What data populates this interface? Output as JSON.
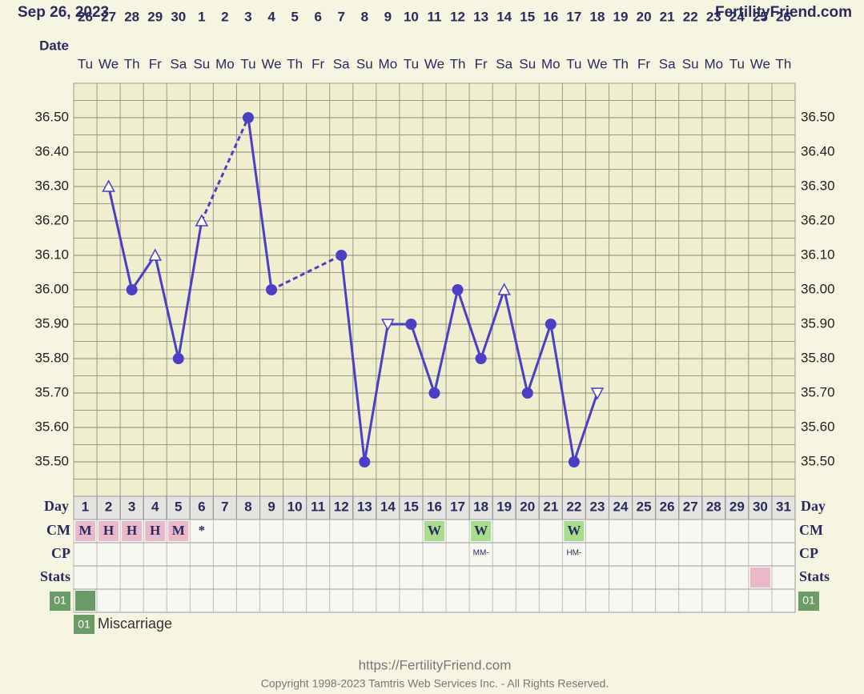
{
  "header": {
    "date": "Sep 26, 2023",
    "site": "FertilityFriend.com"
  },
  "chart_data": {
    "type": "line",
    "date_label": "Date",
    "dates": [
      "26",
      "27",
      "28",
      "29",
      "30",
      "1",
      "2",
      "3",
      "4",
      "5",
      "6",
      "7",
      "8",
      "9",
      "10",
      "11",
      "12",
      "13",
      "14",
      "15",
      "16",
      "17",
      "18",
      "19",
      "20",
      "21",
      "22",
      "23",
      "24",
      "25",
      "26"
    ],
    "weekdays": [
      "Tu",
      "We",
      "Th",
      "Fr",
      "Sa",
      "Su",
      "Mo",
      "Tu",
      "We",
      "Th",
      "Fr",
      "Sa",
      "Su",
      "Mo",
      "Tu",
      "We",
      "Th",
      "Fr",
      "Sa",
      "Su",
      "Mo",
      "Tu",
      "We",
      "Th",
      "Fr",
      "Sa",
      "Su",
      "Mo",
      "Tu",
      "We",
      "Th"
    ],
    "day_label": "Day",
    "categories": [
      "1",
      "2",
      "3",
      "4",
      "5",
      "6",
      "7",
      "8",
      "9",
      "10",
      "11",
      "12",
      "13",
      "14",
      "15",
      "16",
      "17",
      "18",
      "19",
      "20",
      "21",
      "22",
      "23",
      "24",
      "25",
      "26",
      "27",
      "28",
      "29",
      "30",
      "31"
    ],
    "values": [
      null,
      36.3,
      36.0,
      36.1,
      35.8,
      36.2,
      null,
      36.5,
      36.0,
      null,
      null,
      36.1,
      35.5,
      35.9,
      35.9,
      35.7,
      36.0,
      35.8,
      36.0,
      35.7,
      35.9,
      35.5,
      35.7,
      null,
      null,
      null,
      null,
      null,
      null,
      null,
      null
    ],
    "markers": [
      null,
      "up",
      "dot",
      "up",
      "dot",
      "up",
      null,
      "dot",
      "dot",
      null,
      null,
      "dot",
      "dot",
      "down",
      "dot",
      "dot",
      "dot",
      "dot",
      "up",
      "dot",
      "dot",
      "dot",
      "down",
      null,
      null,
      null,
      null,
      null,
      null,
      null,
      null
    ],
    "color": "#4b3fc6",
    "ylim": [
      35.4,
      36.6
    ],
    "yticks": [
      {
        "value": 35.5,
        "label": "35.50"
      },
      {
        "value": 35.6,
        "label": "35.60"
      },
      {
        "value": 35.7,
        "label": "35.70"
      },
      {
        "value": 35.8,
        "label": "35.80"
      },
      {
        "value": 35.9,
        "label": "35.90"
      },
      {
        "value": 36.0,
        "label": "36.00"
      },
      {
        "value": 36.1,
        "label": "36.10"
      },
      {
        "value": 36.2,
        "label": "36.20"
      },
      {
        "value": 36.3,
        "label": "36.30"
      },
      {
        "value": 36.4,
        "label": "36.40"
      },
      {
        "value": 36.5,
        "label": "36.50"
      }
    ],
    "grid": true,
    "rows": [
      {
        "label": "CM",
        "cells": [
          "M",
          "H",
          "H",
          "H",
          "M",
          "*",
          null,
          null,
          null,
          null,
          null,
          null,
          null,
          null,
          null,
          "W",
          null,
          "W",
          null,
          null,
          null,
          "W",
          null,
          null,
          null,
          null,
          null,
          null,
          null,
          null,
          null
        ],
        "colors": [
          "#e9b8cb",
          "#e9b8cb",
          "#e9b8cb",
          "#e9b8cb",
          "#e9b8cb",
          null,
          null,
          null,
          null,
          null,
          null,
          null,
          null,
          null,
          null,
          "#a9dc8e",
          null,
          "#a9dc8e",
          null,
          null,
          null,
          "#a9dc8e",
          null,
          null,
          null,
          null,
          null,
          null,
          null,
          null,
          null
        ]
      },
      {
        "label": "CP",
        "cells": [
          null,
          null,
          null,
          null,
          null,
          null,
          null,
          null,
          null,
          null,
          null,
          null,
          null,
          null,
          null,
          null,
          null,
          "MM-",
          null,
          null,
          null,
          "HM-",
          null,
          null,
          null,
          null,
          null,
          null,
          null,
          null,
          null
        ]
      },
      {
        "label": "Stats",
        "colors": [
          null,
          null,
          null,
          null,
          null,
          null,
          null,
          null,
          null,
          null,
          null,
          null,
          null,
          null,
          null,
          null,
          null,
          null,
          null,
          null,
          null,
          null,
          null,
          null,
          null,
          null,
          null,
          null,
          null,
          "#eab8c8",
          null
        ]
      },
      {
        "label": "01",
        "label_color": "#6b9b66",
        "colors": [
          "#6b9b66",
          null,
          null,
          null,
          null,
          null,
          null,
          null,
          null,
          null,
          null,
          null,
          null,
          null,
          null,
          null,
          null,
          null,
          null,
          null,
          null,
          null,
          null,
          null,
          null,
          null,
          null,
          null,
          null,
          null,
          null
        ]
      }
    ],
    "legend": {
      "code": "01",
      "text": "Miscarriage",
      "color": "#6b9b66"
    }
  },
  "footer": {
    "url": "https://FertilityFriend.com",
    "copyright": "Copyright 1998-2023 Tamtris Web Services Inc. - All Rights Reserved."
  }
}
